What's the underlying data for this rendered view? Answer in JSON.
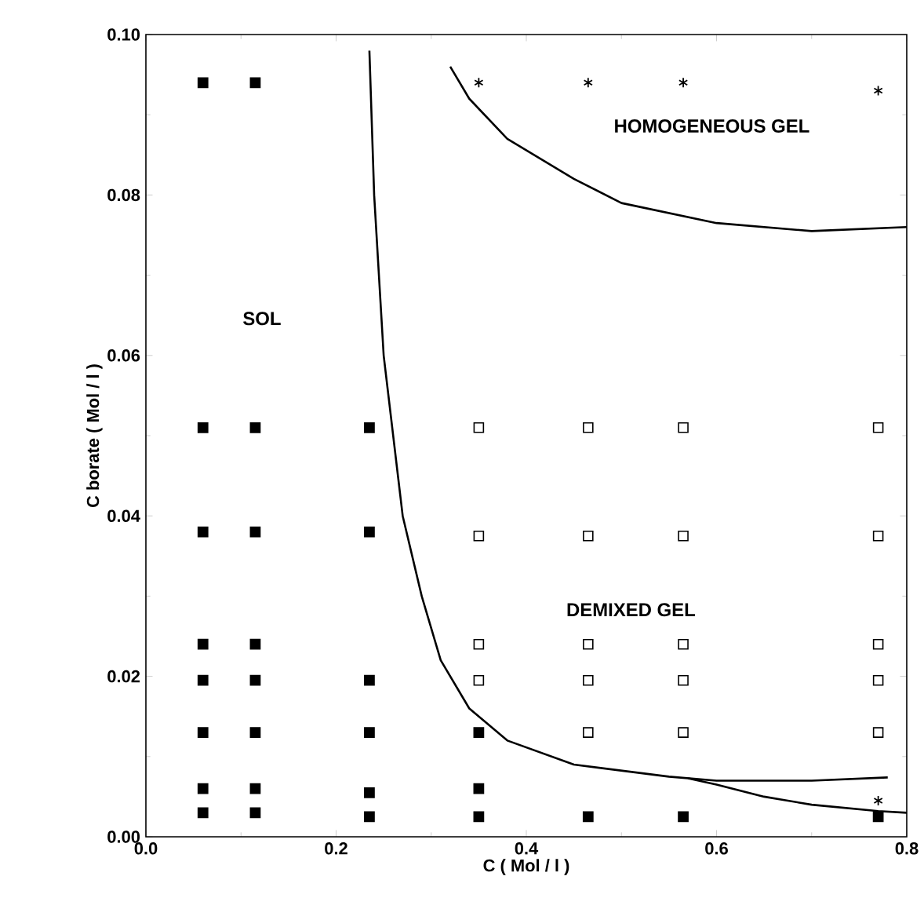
{
  "chart_data": {
    "type": "scatter",
    "xlabel": "C ( Mol / l )",
    "ylabel": "C borate ( Mol / l )",
    "xlim": [
      0,
      0.8
    ],
    "ylim": [
      0,
      0.1
    ],
    "xticks": [
      {
        "value": 0,
        "label": "0.0"
      },
      {
        "value": 0.2,
        "label": "0.2"
      },
      {
        "value": 0.4,
        "label": "0.4"
      },
      {
        "value": 0.6,
        "label": "0.6"
      },
      {
        "value": 0.8,
        "label": "0.8"
      }
    ],
    "yticks": [
      {
        "value": 0,
        "label": "0.00"
      },
      {
        "value": 0.02,
        "label": "0.02"
      },
      {
        "value": 0.04,
        "label": "0.04"
      },
      {
        "value": 0.06,
        "label": "0.06"
      },
      {
        "value": 0.08,
        "label": "0.08"
      },
      {
        "value": 0.1,
        "label": "0.10"
      }
    ],
    "grid": false,
    "series": [
      {
        "marker": "square",
        "color": "#000000",
        "x": [
          0.06,
          0.06,
          0.06,
          0.06,
          0.06,
          0.06,
          0.06,
          0.06,
          0.115,
          0.115,
          0.115,
          0.115,
          0.115,
          0.115,
          0.115,
          0.115,
          0.235,
          0.235,
          0.235,
          0.235,
          0.235,
          0.235,
          0.35,
          0.35,
          0.35,
          0.465,
          0.565,
          0.77
        ],
        "values": [
          0.094,
          0.051,
          0.038,
          0.024,
          0.0195,
          0.013,
          0.006,
          0.003,
          0.094,
          0.051,
          0.038,
          0.024,
          0.0195,
          0.013,
          0.006,
          0.003,
          0.051,
          0.038,
          0.0195,
          0.013,
          0.0055,
          0.0025,
          0.013,
          0.006,
          0.0025,
          0.0025,
          0.0025,
          0.0025
        ]
      },
      {
        "marker": "square",
        "color": "#ffffff",
        "x": [
          0.35,
          0.35,
          0.35,
          0.35,
          0.465,
          0.465,
          0.465,
          0.465,
          0.465,
          0.565,
          0.565,
          0.565,
          0.565,
          0.565,
          0.77,
          0.77,
          0.77,
          0.77,
          0.77
        ],
        "values": [
          0.051,
          0.0375,
          0.024,
          0.0195,
          0.051,
          0.0375,
          0.024,
          0.0195,
          0.013,
          0.051,
          0.0375,
          0.024,
          0.0195,
          0.013,
          0.051,
          0.0375,
          0.024,
          0.0195,
          0.013
        ]
      },
      {
        "marker": "cross",
        "color": "#000000",
        "x": [
          0.35,
          0.465,
          0.565,
          0.77,
          0.77
        ],
        "values": [
          0.094,
          0.094,
          0.094,
          0.093,
          0.0045
        ]
      },
      {
        "type": "line",
        "marker": "none",
        "line_style": "solid",
        "color": "#000000",
        "x": [
          0.235,
          0.24,
          0.25,
          0.26,
          0.27,
          0.29,
          0.31,
          0.34,
          0.38,
          0.45,
          0.55,
          0.6,
          0.7,
          0.78
        ],
        "values": [
          0.098,
          0.08,
          0.06,
          0.05,
          0.04,
          0.03,
          0.022,
          0.016,
          0.012,
          0.009,
          0.0075,
          0.007,
          0.007,
          0.0074
        ]
      },
      {
        "type": "line",
        "marker": "none",
        "line_style": "solid",
        "color": "#000000",
        "x": [
          0.57,
          0.6,
          0.65,
          0.7,
          0.77,
          0.8
        ],
        "values": [
          0.0073,
          0.0065,
          0.005,
          0.004,
          0.0032,
          0.003
        ]
      },
      {
        "type": "line",
        "marker": "none",
        "line_style": "solid",
        "color": "#000000",
        "x": [
          0.32,
          0.34,
          0.38,
          0.45,
          0.5,
          0.6,
          0.7,
          0.8
        ],
        "values": [
          0.096,
          0.092,
          0.087,
          0.082,
          0.079,
          0.0765,
          0.0755,
          0.076
        ]
      }
    ],
    "annotations": [
      "SOL",
      "HOMOGENEOUS GEL",
      "DEMIXED GEL"
    ]
  }
}
